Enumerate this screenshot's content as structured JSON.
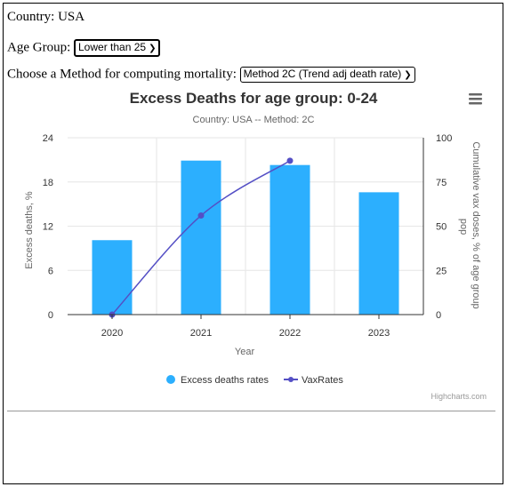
{
  "country_line": "Country: USA",
  "age_group": {
    "label": "Age Group:",
    "selected": "Lower than 25"
  },
  "method": {
    "label": "Choose a Method for computing mortality:",
    "selected": "Method 2C (Trend adj death rate)"
  },
  "chart_menu_icon": "hamburger-menu-icon",
  "credits": "Highcharts.com",
  "colors": {
    "bars": "#2caffe",
    "line": "#544fc5",
    "grid": "#e6e6e6",
    "axis": "#333333"
  },
  "chart_data": {
    "type": "bar",
    "title": "Excess Deaths for age group: 0-24",
    "subtitle": "Country: USA -- Method: 2C",
    "xlabel": "Year",
    "ylabel": "Excess deaths, %",
    "y2label": "Cumulative vax doses, % of age group pop",
    "categories": [
      "2020",
      "2021",
      "2022",
      "2023"
    ],
    "ylim": [
      0,
      24
    ],
    "y2lim": [
      0,
      100
    ],
    "yticks": [
      "0",
      "6",
      "12",
      "18",
      "24"
    ],
    "y2ticks": [
      "0",
      "25",
      "50",
      "75",
      "100"
    ],
    "series": [
      {
        "name": "Excess deaths rates",
        "type": "bar",
        "axis": "left",
        "values": [
          10.1,
          20.9,
          20.3,
          16.6
        ]
      },
      {
        "name": "VaxRates",
        "type": "line",
        "axis": "right",
        "values": [
          0,
          56,
          87,
          null
        ]
      }
    ],
    "legend": "bottom-center",
    "grid": true
  }
}
